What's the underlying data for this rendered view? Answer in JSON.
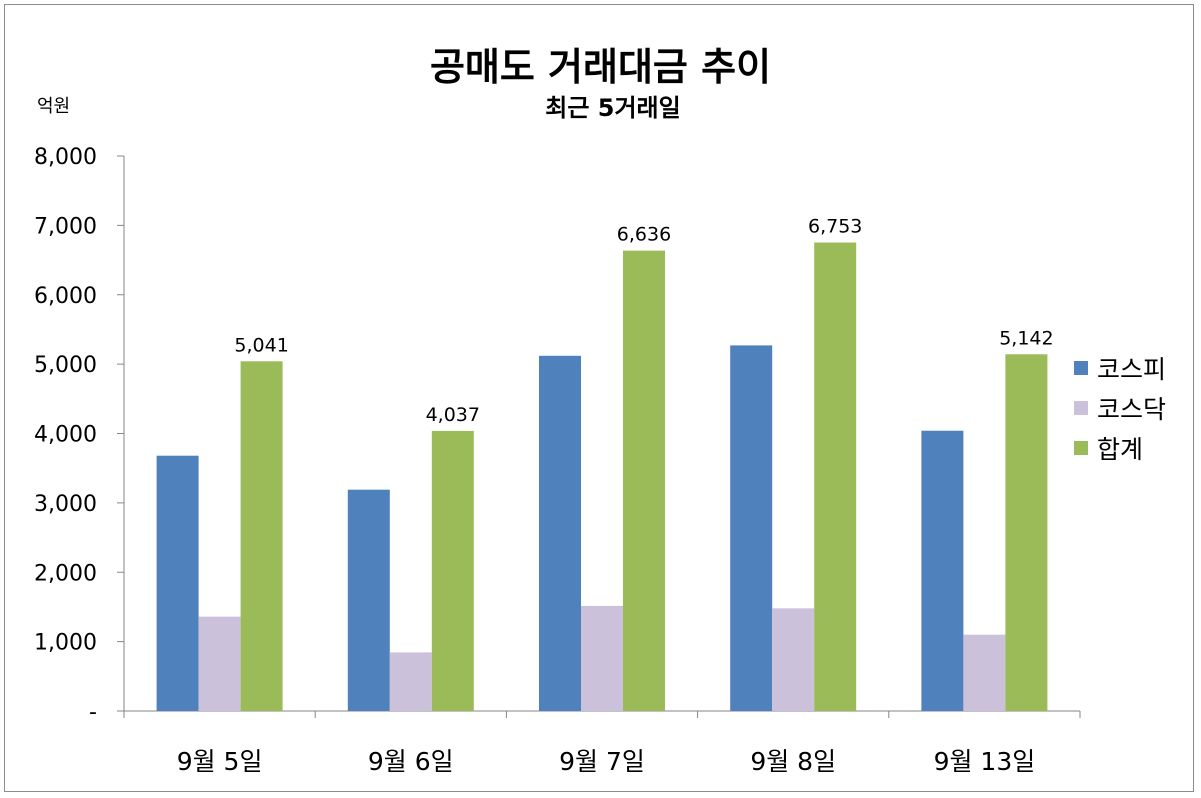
{
  "chart_data": {
    "type": "bar",
    "title": "공매도 거래대금 추이",
    "subtitle": "최근 5거래일",
    "unit_label": "억원",
    "categories": [
      "9월 5일",
      "9월 6일",
      "9월 7일",
      "9월 8일",
      "9월 13일"
    ],
    "series": [
      {
        "name": "코스피",
        "color": "#4f81bd",
        "values": [
          3680,
          3190,
          5120,
          5270,
          4040
        ]
      },
      {
        "name": "코스닥",
        "color": "#ccc1da",
        "values": [
          1360,
          845,
          1515,
          1480,
          1100
        ]
      },
      {
        "name": "합계",
        "color": "#9bbb59",
        "values": [
          5041,
          4037,
          6636,
          6753,
          5142
        ]
      }
    ],
    "data_labels_series": "합계",
    "ylim": [
      0,
      8000
    ],
    "ytick_labels": [
      "-",
      "1,000",
      "2,000",
      "3,000",
      "4,000",
      "5,000",
      "6,000",
      "7,000",
      "8,000"
    ],
    "ytick_values": [
      0,
      1000,
      2000,
      3000,
      4000,
      5000,
      6000,
      7000,
      8000
    ],
    "grid": false,
    "legend_position": "right"
  }
}
